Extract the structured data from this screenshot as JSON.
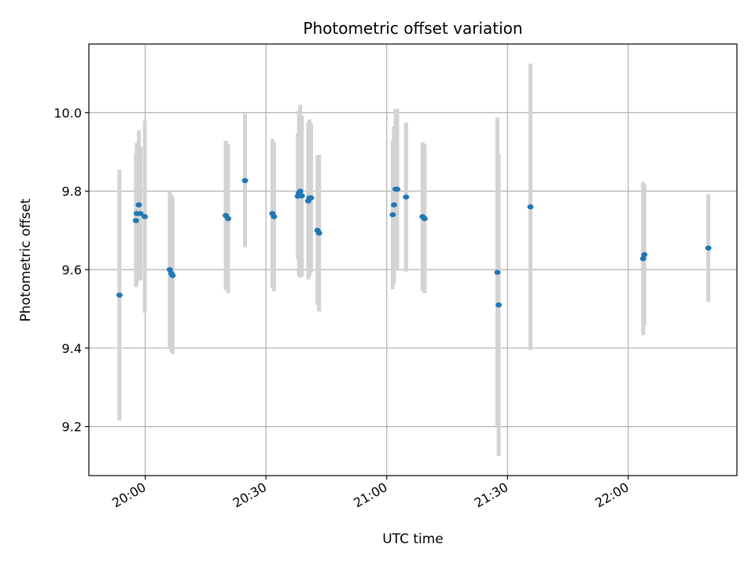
{
  "chart_data": {
    "type": "scatter",
    "title": "Photometric offset variation",
    "xlabel": "UTC time",
    "ylabel": "Photometric offset",
    "x_axis_type": "time",
    "xlim": [
      "19:46",
      "22:27"
    ],
    "ylim": [
      9.075,
      10.175
    ],
    "x_ticks": [
      "20:00",
      "20:30",
      "21:00",
      "21:30",
      "22:00"
    ],
    "y_ticks": [
      9.2,
      9.4,
      9.6,
      9.8,
      10.0
    ],
    "y_tick_labels": [
      "9.2",
      "9.4",
      "9.6",
      "9.8",
      "10.0"
    ],
    "grid": true,
    "marker_color": "#1f77b4",
    "errorbar_color": "#d3d3d3",
    "points": [
      {
        "x": "19:53:36",
        "y": 9.535,
        "err": 0.32
      },
      {
        "x": "19:57:42",
        "y": 9.725,
        "err": 0.17
      },
      {
        "x": "19:57:54",
        "y": 9.743,
        "err": 0.18
      },
      {
        "x": "19:58:24",
        "y": 9.765,
        "err": 0.19
      },
      {
        "x": "19:58:48",
        "y": 9.743,
        "err": 0.17
      },
      {
        "x": "19:59:54",
        "y": 9.735,
        "err": 0.245
      },
      {
        "x": "20:06:06",
        "y": 9.6,
        "err": 0.2
      },
      {
        "x": "20:06:30",
        "y": 9.59,
        "err": 0.2
      },
      {
        "x": "20:06:48",
        "y": 9.585,
        "err": 0.2
      },
      {
        "x": "20:20:00",
        "y": 9.738,
        "err": 0.19
      },
      {
        "x": "20:20:36",
        "y": 9.73,
        "err": 0.19
      },
      {
        "x": "20:24:48",
        "y": 9.827,
        "err": 0.17
      },
      {
        "x": "20:31:36",
        "y": 9.743,
        "err": 0.19
      },
      {
        "x": "20:32:00",
        "y": 9.735,
        "err": 0.19
      },
      {
        "x": "20:37:54",
        "y": 9.787,
        "err": 0.16
      },
      {
        "x": "20:38:12",
        "y": 9.795,
        "err": 0.21
      },
      {
        "x": "20:38:30",
        "y": 9.8,
        "err": 0.22
      },
      {
        "x": "20:38:54",
        "y": 9.788,
        "err": 0.205
      },
      {
        "x": "20:40:30",
        "y": 9.775,
        "err": 0.2
      },
      {
        "x": "20:40:48",
        "y": 9.783,
        "err": 0.2
      },
      {
        "x": "20:41:12",
        "y": 9.783,
        "err": 0.19
      },
      {
        "x": "20:42:48",
        "y": 9.7,
        "err": 0.19
      },
      {
        "x": "20:43:12",
        "y": 9.693,
        "err": 0.2
      },
      {
        "x": "21:01:30",
        "y": 9.74,
        "err": 0.19
      },
      {
        "x": "21:01:48",
        "y": 9.765,
        "err": 0.2
      },
      {
        "x": "21:02:12",
        "y": 9.805,
        "err": 0.205
      },
      {
        "x": "21:02:36",
        "y": 9.805,
        "err": 0.205
      },
      {
        "x": "21:04:48",
        "y": 9.785,
        "err": 0.19
      },
      {
        "x": "21:08:54",
        "y": 9.735,
        "err": 0.19
      },
      {
        "x": "21:09:24",
        "y": 9.73,
        "err": 0.19
      },
      {
        "x": "21:27:30",
        "y": 9.593,
        "err": 0.395
      },
      {
        "x": "21:27:48",
        "y": 9.51,
        "err": 0.385
      },
      {
        "x": "21:35:42",
        "y": 9.76,
        "err": 0.365
      },
      {
        "x": "22:03:42",
        "y": 9.628,
        "err": 0.195
      },
      {
        "x": "22:04:00",
        "y": 9.638,
        "err": 0.18
      },
      {
        "x": "22:19:54",
        "y": 9.655,
        "err": 0.137
      }
    ]
  }
}
